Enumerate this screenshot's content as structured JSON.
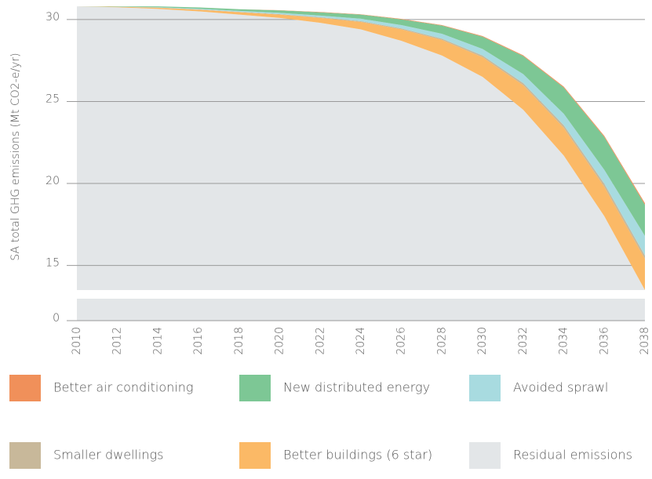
{
  "chart_data": {
    "type": "stacked_area",
    "y_label": "SA total GHG emissions (Mt CO2-e/yr)",
    "x": [
      2010,
      2012,
      2014,
      2016,
      2018,
      2020,
      2022,
      2024,
      2026,
      2028,
      2030,
      2032,
      2034,
      2036,
      2038
    ],
    "xlim": [
      2010,
      2038
    ],
    "xticks": [
      2010,
      2012,
      2014,
      2016,
      2018,
      2020,
      2022,
      2024,
      2026,
      2028,
      2030,
      2032,
      2034,
      2036,
      2038
    ],
    "ylim": [
      0,
      31
    ],
    "ybreak": [
      1.3,
      13.5
    ],
    "yticks": [
      0,
      15,
      20,
      25,
      30
    ],
    "grid": true,
    "series": [
      {
        "name": "Residual emissions",
        "color": "#e3e6e8",
        "values": [
          30.8,
          30.75,
          30.65,
          30.5,
          30.3,
          30.1,
          29.8,
          29.4,
          28.7,
          27.8,
          26.5,
          24.5,
          21.7,
          18.0,
          13.5
        ]
      },
      {
        "name": "Better buildings (6 star)",
        "color": "#fbb966",
        "values": [
          0,
          0.03,
          0.07,
          0.1,
          0.15,
          0.2,
          0.3,
          0.45,
          0.7,
          0.95,
          1.2,
          1.5,
          1.7,
          1.8,
          1.9
        ]
      },
      {
        "name": "Smaller dwellings",
        "color": "#c8b89a",
        "values": [
          0,
          0,
          0.01,
          0.02,
          0.02,
          0.03,
          0.04,
          0.05,
          0.06,
          0.08,
          0.1,
          0.12,
          0.15,
          0.18,
          0.2
        ]
      },
      {
        "name": "Avoided sprawl",
        "color": "#a8dbe0",
        "values": [
          0,
          0,
          0.02,
          0.04,
          0.06,
          0.08,
          0.1,
          0.15,
          0.2,
          0.3,
          0.4,
          0.55,
          0.7,
          0.85,
          1.2
        ]
      },
      {
        "name": "New distributed energy",
        "color": "#7dc795",
        "values": [
          0,
          0.02,
          0.05,
          0.08,
          0.1,
          0.15,
          0.2,
          0.25,
          0.35,
          0.5,
          0.75,
          1.1,
          1.6,
          2.0,
          1.9
        ]
      },
      {
        "name": "Better air conditioning",
        "color": "#f0905a",
        "values": [
          0,
          0,
          0,
          0,
          0,
          0.01,
          0.02,
          0.02,
          0.03,
          0.03,
          0.04,
          0.05,
          0.06,
          0.07,
          0.1
        ]
      }
    ]
  }
}
